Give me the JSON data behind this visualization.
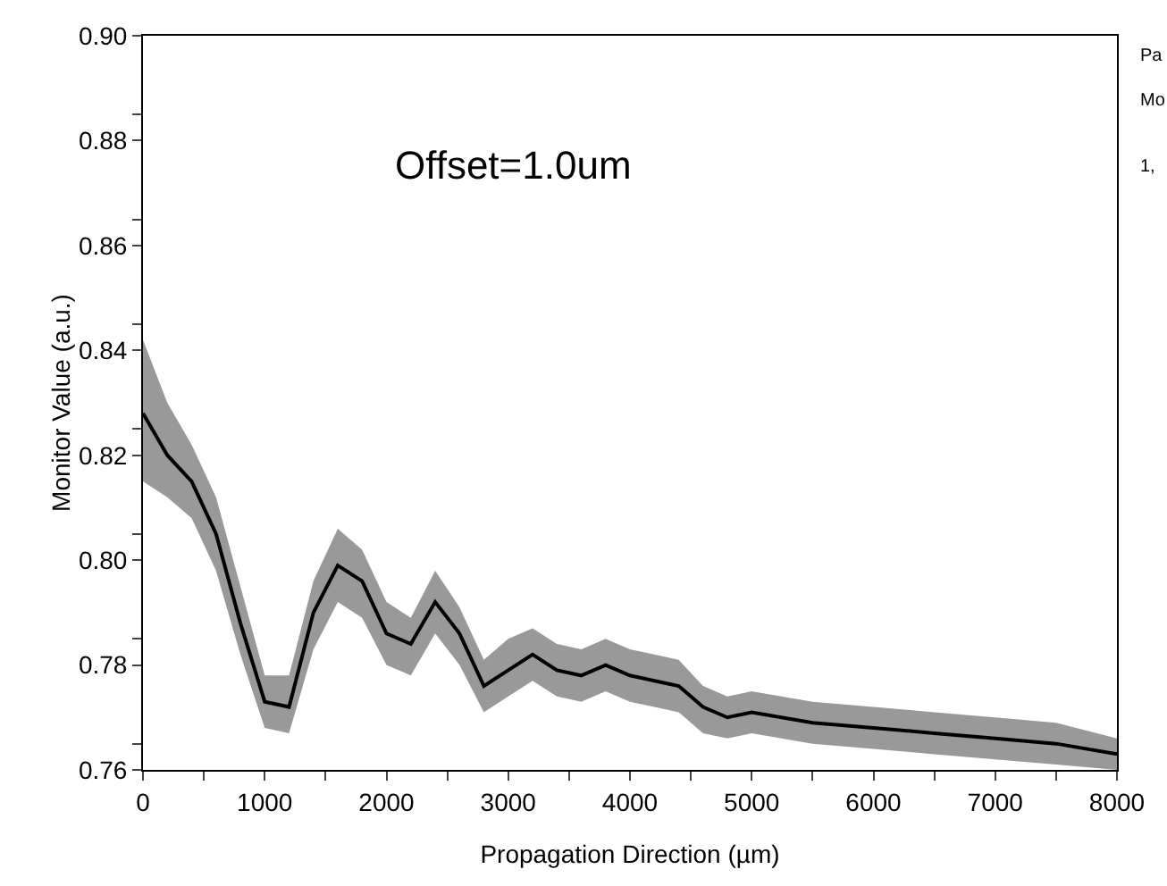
{
  "chart_data": {
    "type": "line",
    "xlabel": "Propagation Direction (µm)",
    "ylabel": "Monitor Value (a.u.)",
    "annotations": [
      "Offset=1.0um",
      "Pa",
      "Mo",
      "1,"
    ],
    "xlim": [
      0,
      8000
    ],
    "ylim": [
      0.76,
      0.9
    ],
    "xticks": [
      0,
      {
        "value": 500,
        "label": null
      },
      1000,
      {
        "value": 1500,
        "label": null
      },
      2000,
      {
        "value": 2500,
        "label": null
      },
      3000,
      {
        "value": 3500,
        "label": null
      },
      4000,
      {
        "value": 4500,
        "label": null
      },
      5000,
      {
        "value": 5500,
        "label": null
      },
      6000,
      {
        "value": 6500,
        "label": null
      },
      7000,
      {
        "value": 7500,
        "label": null
      },
      8000
    ],
    "yticks": [
      0.76,
      {
        "value": 0.765,
        "label": null
      },
      0.78,
      {
        "value": 0.785,
        "label": null
      },
      {
        "value": 0.8,
        "label": "0.80"
      },
      {
        "value": 0.805,
        "label": null
      },
      0.82,
      {
        "value": 0.825,
        "label": null
      },
      0.84,
      {
        "value": 0.845,
        "label": null
      },
      0.86,
      {
        "value": 0.865,
        "label": null
      },
      0.88,
      {
        "value": 0.885,
        "label": null
      },
      {
        "value": 0.9,
        "label": "0.90"
      }
    ],
    "grid": false,
    "legend": false,
    "marker": "none",
    "line_style": "solid",
    "x": [
      0,
      200,
      400,
      600,
      800,
      1000,
      1200,
      1400,
      1600,
      1800,
      2000,
      2200,
      2400,
      2600,
      2800,
      3000,
      3200,
      3400,
      3600,
      3800,
      4000,
      4200,
      4400,
      4600,
      4800,
      5000,
      5500,
      6000,
      6500,
      7000,
      7500,
      8000
    ],
    "series": [
      {
        "color": "#000000",
        "values": [
          0.828,
          0.82,
          0.815,
          0.805,
          0.788,
          0.773,
          0.772,
          0.79,
          0.799,
          0.796,
          0.786,
          0.784,
          0.792,
          0.786,
          0.776,
          0.779,
          0.782,
          0.779,
          0.778,
          0.78,
          0.778,
          0.777,
          0.776,
          0.772,
          0.77,
          0.771,
          0.769,
          0.768,
          0.767,
          0.766,
          0.765,
          0.763
        ],
        "lower": [
          0.815,
          0.812,
          0.808,
          0.798,
          0.782,
          0.768,
          0.767,
          0.783,
          0.792,
          0.789,
          0.78,
          0.778,
          0.786,
          0.78,
          0.771,
          0.774,
          0.777,
          0.774,
          0.773,
          0.775,
          0.773,
          0.772,
          0.771,
          0.767,
          0.766,
          0.767,
          0.765,
          0.764,
          0.763,
          0.762,
          0.761,
          0.76
        ],
        "upper": [
          0.842,
          0.83,
          0.822,
          0.812,
          0.795,
          0.778,
          0.778,
          0.796,
          0.806,
          0.802,
          0.792,
          0.789,
          0.798,
          0.791,
          0.781,
          0.785,
          0.787,
          0.784,
          0.783,
          0.785,
          0.783,
          0.782,
          0.781,
          0.776,
          0.774,
          0.775,
          0.773,
          0.772,
          0.771,
          0.77,
          0.769,
          0.766
        ]
      }
    ]
  }
}
